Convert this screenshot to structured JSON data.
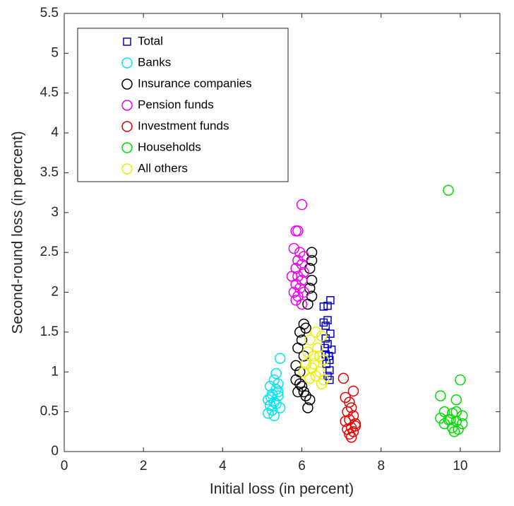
{
  "chart_data": {
    "type": "scatter",
    "xlabel": "Initial loss (in percent)",
    "ylabel": "Second-round loss (in percent)",
    "xlim": [
      0,
      11
    ],
    "xticks": [
      0,
      2,
      4,
      6,
      8,
      10
    ],
    "ylim": [
      0,
      5.5
    ],
    "yticks": [
      0,
      0.5,
      1,
      1.5,
      2,
      2.5,
      3,
      3.5,
      4,
      4.5,
      5,
      5.5
    ],
    "legend": "northwest",
    "series": [
      {
        "name": "Total",
        "color": "#0000cc",
        "marker": "square",
        "x": [
          6.72,
          6.65,
          6.55,
          6.65,
          6.6,
          6.55,
          6.72,
          6.6,
          6.65,
          6.75,
          6.6,
          6.7,
          6.62,
          6.7,
          6.65,
          6.7,
          6.58,
          6.68
        ],
        "values": [
          1.9,
          1.83,
          1.82,
          1.65,
          1.58,
          1.62,
          1.48,
          1.42,
          1.35,
          1.28,
          1.22,
          1.15,
          1.1,
          1.02,
          0.95,
          0.9,
          1.3,
          1.2
        ]
      },
      {
        "name": "Banks",
        "color": "#00e5ee",
        "marker": "circle",
        "x": [
          5.45,
          5.35,
          5.3,
          5.4,
          5.2,
          5.35,
          5.25,
          5.4,
          5.15,
          5.3,
          5.2,
          5.45,
          5.25,
          5.15,
          5.3,
          5.35,
          5.4,
          5.22
        ],
        "values": [
          1.17,
          0.98,
          0.9,
          0.85,
          0.82,
          0.78,
          0.72,
          0.7,
          0.65,
          0.62,
          0.58,
          0.55,
          0.52,
          0.48,
          0.45,
          0.6,
          0.75,
          0.68
        ]
      },
      {
        "name": "Insurance companies",
        "color": "#000000",
        "marker": "circle",
        "x": [
          6.25,
          6.25,
          6.2,
          6.25,
          6.2,
          6.25,
          6.15,
          6.05,
          6.1,
          5.95,
          6.0,
          5.9,
          6.05,
          5.85,
          5.95,
          5.85,
          6.0,
          5.9,
          6.1,
          6.2,
          6.15,
          6.05,
          5.95
        ],
        "values": [
          2.5,
          2.4,
          2.3,
          2.15,
          2.05,
          1.95,
          1.85,
          1.6,
          1.55,
          1.5,
          1.4,
          1.3,
          1.2,
          1.08,
          1.0,
          0.9,
          0.82,
          0.75,
          0.7,
          0.65,
          0.55,
          0.75,
          0.85
        ]
      },
      {
        "name": "Pension funds",
        "color": "#ee00ee",
        "marker": "circle",
        "x": [
          6.0,
          5.9,
          5.85,
          5.8,
          5.95,
          6.05,
          5.9,
          6.0,
          5.85,
          6.05,
          5.9,
          5.75,
          6.0,
          5.85,
          5.95,
          5.8,
          6.05,
          5.9,
          5.85,
          6.0
        ],
        "values": [
          3.1,
          2.77,
          2.77,
          2.55,
          2.5,
          2.45,
          2.4,
          2.35,
          2.3,
          2.25,
          2.2,
          2.2,
          2.15,
          2.1,
          2.05,
          2.0,
          2.0,
          1.95,
          1.9,
          1.85
        ]
      },
      {
        "name": "Investment funds",
        "color": "#ee0000",
        "marker": "circle",
        "x": [
          7.05,
          7.3,
          7.1,
          7.2,
          7.25,
          7.15,
          7.3,
          7.2,
          7.1,
          7.35,
          7.25,
          7.15,
          7.3,
          7.2,
          7.25,
          7.35
        ],
        "values": [
          0.92,
          0.76,
          0.68,
          0.62,
          0.55,
          0.5,
          0.45,
          0.4,
          0.38,
          0.35,
          0.3,
          0.28,
          0.25,
          0.22,
          0.18,
          0.32
        ]
      },
      {
        "name": "Households",
        "color": "#00dd00",
        "marker": "circle",
        "x": [
          9.7,
          10.0,
          9.5,
          9.9,
          9.6,
          9.8,
          10.05,
          9.5,
          9.7,
          9.9,
          10.05,
          9.6,
          9.8,
          9.95,
          9.85,
          9.75,
          9.9
        ],
        "values": [
          3.28,
          0.9,
          0.7,
          0.65,
          0.5,
          0.48,
          0.45,
          0.42,
          0.4,
          0.38,
          0.35,
          0.35,
          0.3,
          0.28,
          0.25,
          0.4,
          0.5
        ]
      },
      {
        "name": "All others",
        "color": "#eeee00",
        "marker": "circle",
        "x": [
          6.35,
          6.5,
          6.2,
          6.4,
          6.3,
          6.55,
          6.1,
          6.25,
          6.45,
          6.05,
          6.35,
          6.55,
          6.2,
          6.5,
          6.3,
          6.15,
          6.45
        ],
        "values": [
          1.5,
          1.45,
          1.4,
          1.3,
          1.2,
          1.15,
          1.1,
          1.05,
          1.0,
          1.0,
          0.95,
          0.9,
          0.92,
          0.85,
          1.1,
          1.25,
          1.2
        ]
      }
    ]
  }
}
